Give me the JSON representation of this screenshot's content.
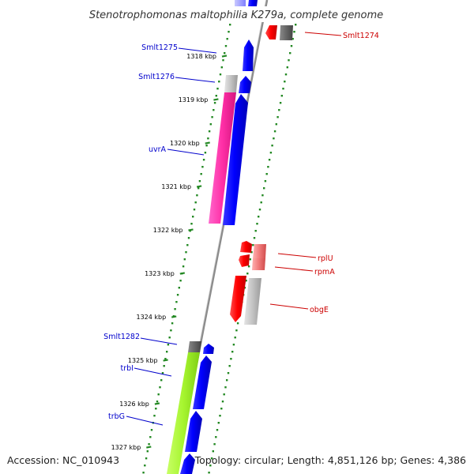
{
  "map": {
    "title": "Stenotrophomonas maltophilia K279a, complete genome",
    "accession": "Accession: NC_010943",
    "summary": "Topology: circular; Length: 4,851,126 bp; Genes: 4,386"
  },
  "scale": {
    "ticks": [
      "1318 kbp",
      "1319 kbp",
      "1320 kbp",
      "1321 kbp",
      "1322 kbp",
      "1323 kbp",
      "1324 kbp",
      "1325 kbp",
      "1326 kbp",
      "1327 kbp"
    ]
  },
  "genes": {
    "left": [
      "Smlt1275",
      "Smlt1276",
      "uvrA",
      "Smlt1282",
      "trbI",
      "trbG"
    ],
    "right": [
      "Smlt1274",
      "rplU",
      "rpmA",
      "obgE"
    ]
  },
  "colors": {
    "forward_cds": "#0000ff",
    "reverse_cds": "#ff0000",
    "uvrA_feature": "#ff33aa",
    "trb_feature": "#aaff33",
    "pseudo_feature": "#bbbbbb",
    "backbone": "#888888",
    "guide_dots": "#228822",
    "left_label": "#0000cc",
    "right_label": "#cc0000"
  }
}
